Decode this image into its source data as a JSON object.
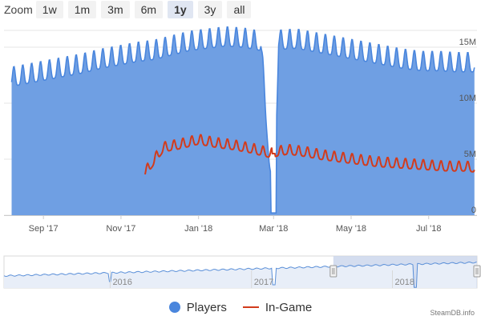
{
  "zoom": {
    "label": "Zoom",
    "buttons": [
      {
        "label": "1w",
        "active": false
      },
      {
        "label": "1m",
        "active": false
      },
      {
        "label": "3m",
        "active": false
      },
      {
        "label": "6m",
        "active": false
      },
      {
        "label": "1y",
        "active": true
      },
      {
        "label": "3y",
        "active": false
      },
      {
        "label": "all",
        "active": false
      }
    ]
  },
  "colors": {
    "players_area": "#6f9fe3",
    "players_line": "#4a86dd",
    "ingame_line": "#d23b1c",
    "navigator_fill": "#e8eef8",
    "navigator_line": "#5a8fd8",
    "selection": "#c9d4eb"
  },
  "chart_data": {
    "type": "area",
    "x_tick_labels": [
      "Sep '17",
      "Nov '17",
      "Jan '18",
      "Mar '18",
      "May '18",
      "Jul '18"
    ],
    "y_tick_labels": [
      "0",
      "5M",
      "10M",
      "15M"
    ],
    "ylim": [
      0,
      16500000
    ],
    "series": [
      {
        "name": "Players",
        "type": "area",
        "sampled_points": [
          [
            "2017-08-07",
            12600000
          ],
          [
            "2017-08-21",
            12900000
          ],
          [
            "2017-09-04",
            13200000
          ],
          [
            "2017-09-18",
            13500000
          ],
          [
            "2017-10-02",
            13800000
          ],
          [
            "2017-10-16",
            14200000
          ],
          [
            "2017-10-30",
            14500000
          ],
          [
            "2017-11-13",
            14800000
          ],
          [
            "2017-11-27",
            15000000
          ],
          [
            "2017-12-11",
            15400000
          ],
          [
            "2017-12-25",
            15800000
          ],
          [
            "2018-01-08",
            16000000
          ],
          [
            "2018-01-22",
            16200000
          ],
          [
            "2018-02-05",
            16100000
          ],
          [
            "2018-02-19",
            15800000
          ],
          [
            "2018-03-01",
            300000
          ],
          [
            "2018-03-05",
            15900000
          ],
          [
            "2018-03-19",
            16000000
          ],
          [
            "2018-04-02",
            15700000
          ],
          [
            "2018-04-16",
            15400000
          ],
          [
            "2018-04-30",
            15100000
          ],
          [
            "2018-05-14",
            14800000
          ],
          [
            "2018-05-28",
            14500000
          ],
          [
            "2018-06-11",
            14200000
          ],
          [
            "2018-06-25",
            14000000
          ],
          [
            "2018-07-09",
            14000000
          ],
          [
            "2018-07-23",
            13900000
          ],
          [
            "2018-08-06",
            13900000
          ]
        ]
      },
      {
        "name": "In-Game",
        "type": "line",
        "sampled_points": [
          [
            "2017-11-20",
            4000000
          ],
          [
            "2017-12-04",
            6200000
          ],
          [
            "2017-12-18",
            6500000
          ],
          [
            "2018-01-01",
            6900000
          ],
          [
            "2018-01-15",
            6600000
          ],
          [
            "2018-01-29",
            6400000
          ],
          [
            "2018-02-12",
            6100000
          ],
          [
            "2018-02-26",
            5700000
          ],
          [
            "2018-03-12",
            6000000
          ],
          [
            "2018-03-26",
            5800000
          ],
          [
            "2018-04-09",
            5500000
          ],
          [
            "2018-04-23",
            5300000
          ],
          [
            "2018-05-07",
            5100000
          ],
          [
            "2018-05-21",
            4900000
          ],
          [
            "2018-06-04",
            4800000
          ],
          [
            "2018-06-18",
            4700000
          ],
          [
            "2018-07-02",
            4600000
          ],
          [
            "2018-07-16",
            4500000
          ],
          [
            "2018-07-30",
            4500000
          ],
          [
            "2018-08-06",
            4400000
          ]
        ]
      }
    ],
    "navigator": {
      "year_labels": [
        "2016",
        "2017",
        "2018"
      ]
    },
    "legend": [
      "Players",
      "In-Game"
    ],
    "legend_position": "bottom-center"
  },
  "credit": "SteamDB.info"
}
